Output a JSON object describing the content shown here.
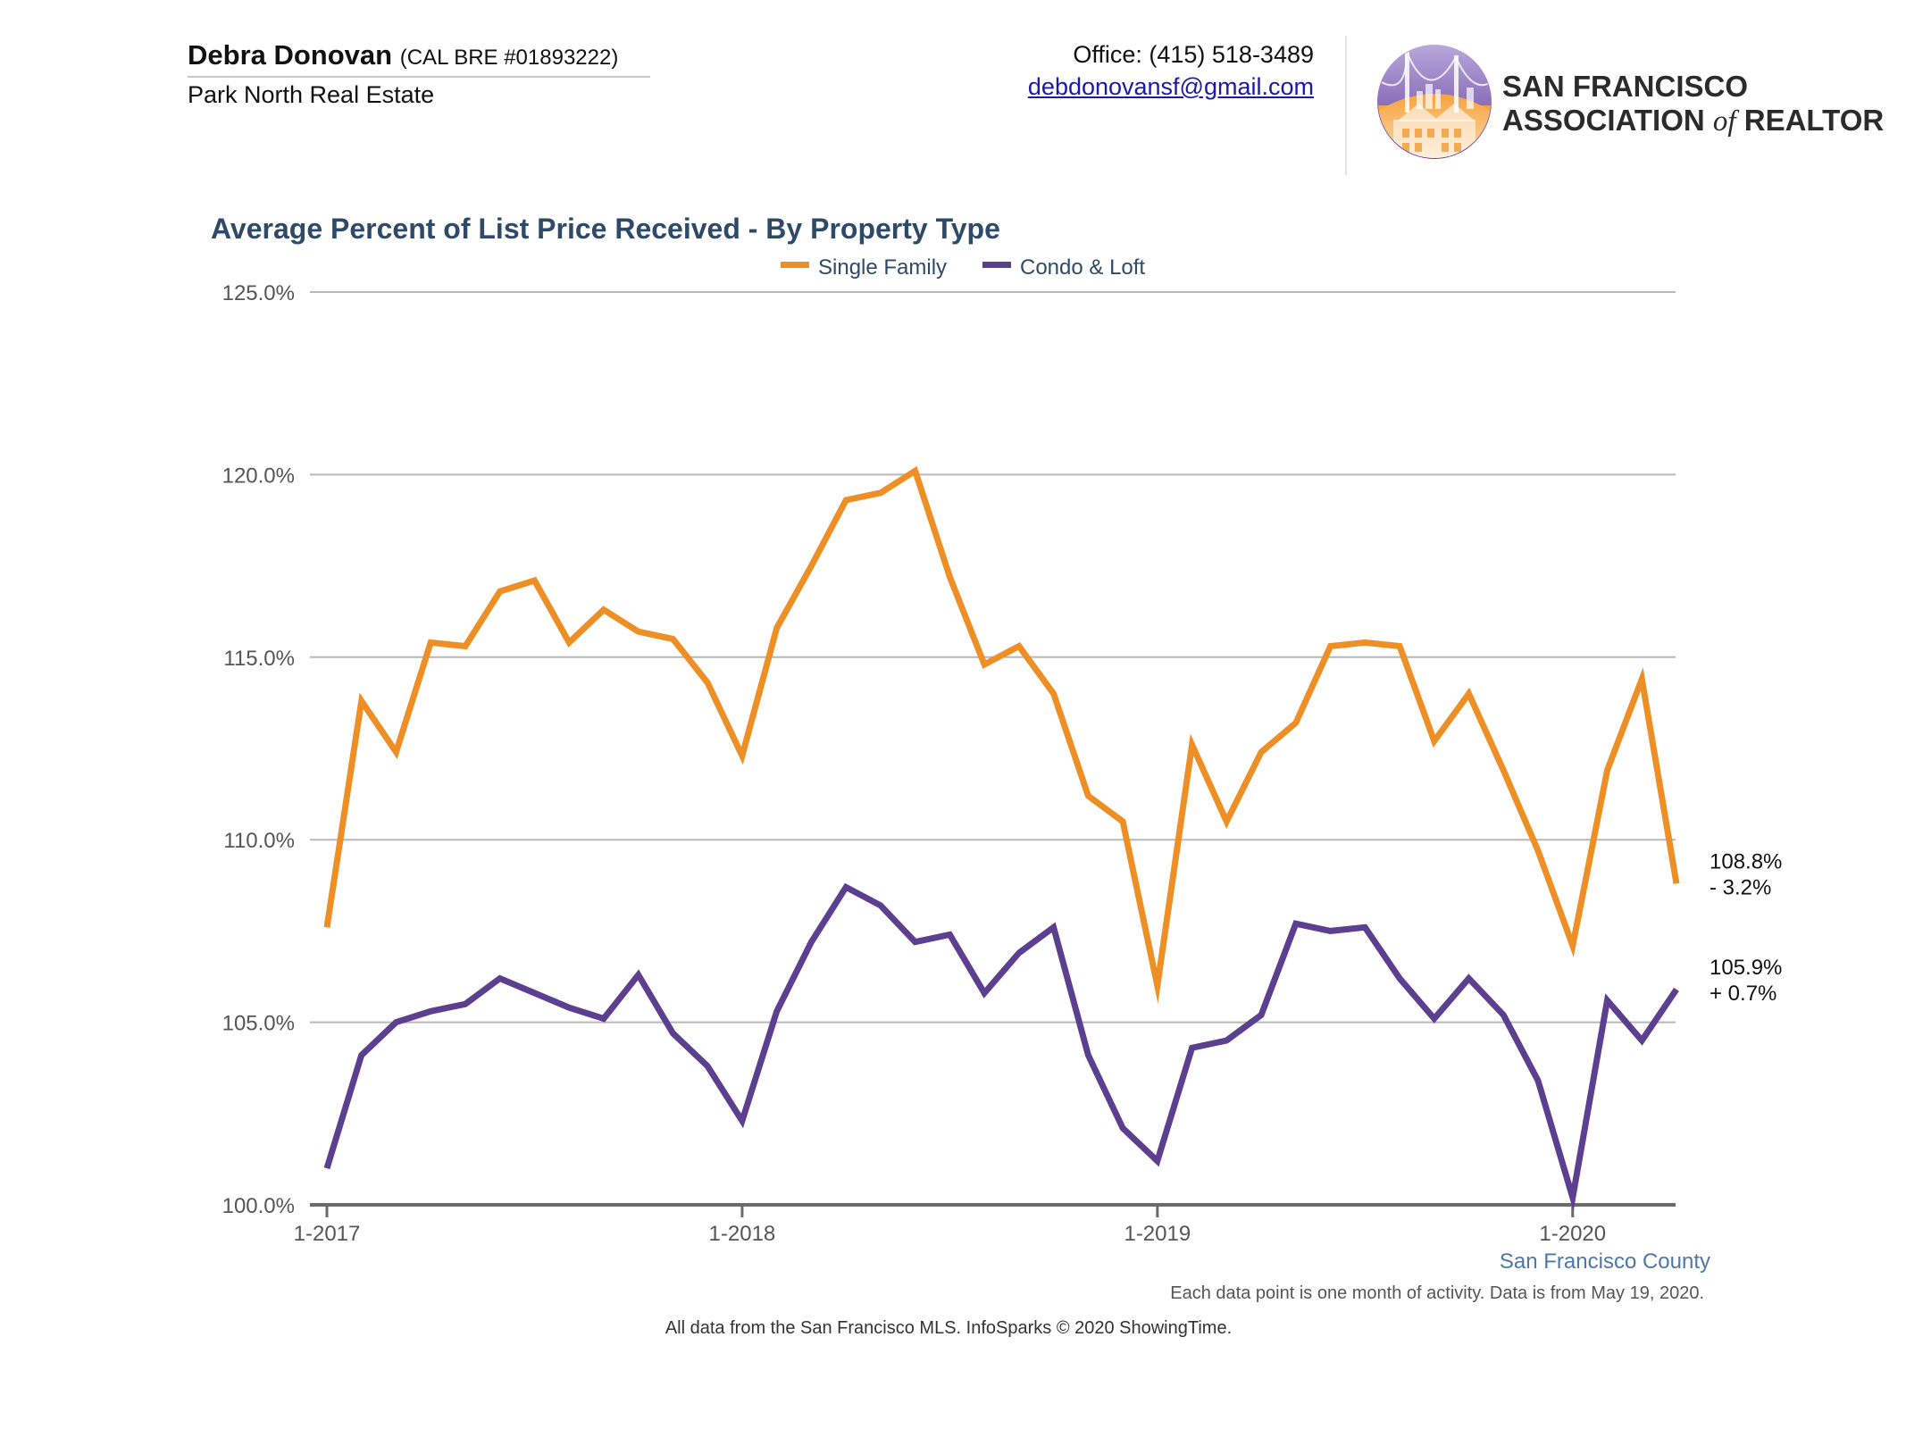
{
  "header": {
    "agent_name": "Debra Donovan",
    "agent_license": "(CAL BRE #01893222)",
    "agent_company": "Park North Real Estate",
    "office_phone": "Office: (415) 518-3489",
    "email": "debdonovansf@gmail.com"
  },
  "logo": {
    "line1": "SAN FRANCISCO",
    "line2_a": "ASSOCIATION ",
    "line2_b": "of",
    "line2_c": " REALTORS",
    "mark": "®"
  },
  "footer": {
    "region": "San Francisco County",
    "note": "Each data point is one month of activity. Data is from May 19, 2020.",
    "source": "All data from the San Francisco MLS. InfoSparks © 2020 ShowingTime."
  },
  "chart_data": {
    "type": "line",
    "title": "Average Percent of List Price Received - By Property Type",
    "xlabel": "",
    "ylabel": "",
    "ylim": [
      100,
      125
    ],
    "y_ticks": [
      "100.0%",
      "105.0%",
      "110.0%",
      "115.0%",
      "120.0%",
      "125.0%"
    ],
    "y_tick_values": [
      100,
      105,
      110,
      115,
      120,
      125
    ],
    "x_ticks": [
      "1-2017",
      "1-2018",
      "1-2019",
      "1-2020"
    ],
    "x_tick_index": [
      0,
      12,
      24,
      36
    ],
    "x": [
      "1-2017",
      "2-2017",
      "3-2017",
      "4-2017",
      "5-2017",
      "6-2017",
      "7-2017",
      "8-2017",
      "9-2017",
      "10-2017",
      "11-2017",
      "12-2017",
      "1-2018",
      "2-2018",
      "3-2018",
      "4-2018",
      "5-2018",
      "6-2018",
      "7-2018",
      "8-2018",
      "9-2018",
      "10-2018",
      "11-2018",
      "12-2018",
      "1-2019",
      "2-2019",
      "3-2019",
      "4-2019",
      "5-2019",
      "6-2019",
      "7-2019",
      "8-2019",
      "9-2019",
      "10-2019",
      "11-2019",
      "12-2019",
      "1-2020",
      "2-2020",
      "3-2020",
      "4-2020"
    ],
    "legend_position": "top-center",
    "grid": true,
    "series": [
      {
        "name": "Single Family",
        "color": "#ee8f26",
        "values": [
          107.6,
          113.8,
          112.4,
          115.4,
          115.3,
          116.8,
          117.1,
          115.4,
          116.3,
          115.7,
          115.5,
          114.3,
          112.3,
          115.8,
          117.5,
          119.3,
          119.5,
          120.1,
          117.2,
          114.8,
          115.3,
          114.0,
          111.2,
          110.5,
          106.0,
          112.6,
          110.5,
          112.4,
          113.2,
          115.3,
          115.4,
          115.3,
          112.7,
          114.0,
          111.9,
          109.7,
          107.1,
          111.9,
          114.4,
          108.8
        ],
        "end_value": "108.8%",
        "end_change": "- 3.2%"
      },
      {
        "name": "Condo & Loft",
        "color": "#5c3f8f",
        "values": [
          101.0,
          104.1,
          105.0,
          105.3,
          105.5,
          106.2,
          105.8,
          105.4,
          105.1,
          106.3,
          104.7,
          103.8,
          102.3,
          105.3,
          107.2,
          108.7,
          108.2,
          107.2,
          107.4,
          105.8,
          106.9,
          107.6,
          104.1,
          102.1,
          101.2,
          104.3,
          104.5,
          105.2,
          107.7,
          107.5,
          107.6,
          106.2,
          105.1,
          106.2,
          105.2,
          103.4,
          100.2,
          105.6,
          104.5,
          105.9
        ],
        "end_value": "105.9%",
        "end_change": "+ 0.7%"
      }
    ]
  }
}
